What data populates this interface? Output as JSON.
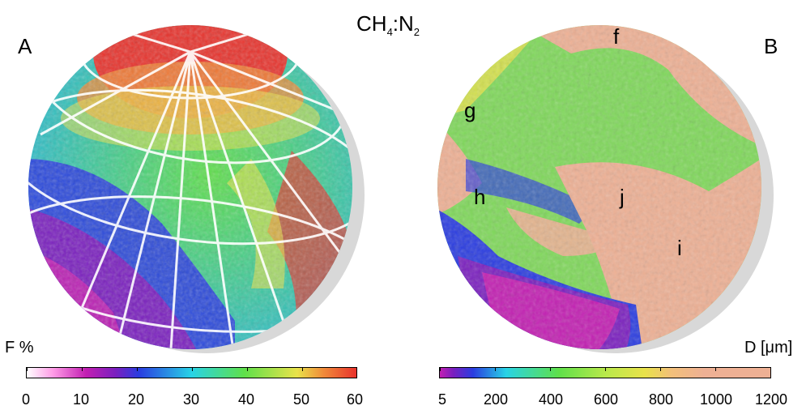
{
  "title": {
    "main": "CH",
    "sub1": "4",
    "mid": ":N",
    "sub2": "2"
  },
  "panels": {
    "a": {
      "letter": "A",
      "bar_label": "F %",
      "ticks": [
        "0",
        "10",
        "20",
        "30",
        "40",
        "50",
        "60"
      ]
    },
    "b": {
      "letter": "B",
      "bar_label": "D [μm]",
      "ticks": [
        "5",
        "200",
        "400",
        "600",
        "800",
        "1000",
        "1200"
      ],
      "regions": [
        "f",
        "g",
        "h",
        "j",
        "i"
      ]
    }
  },
  "colors": {
    "pink": "#ff9be6",
    "magenta": "#c21fb2",
    "purple": "#7a1fbf",
    "blue": "#2a3ce0",
    "cyan": "#28d3e6",
    "green": "#5fe04a",
    "yellow": "#e9e24a",
    "orange": "#f08b3a",
    "red": "#e8322c",
    "salmon": "#eeb094"
  }
}
